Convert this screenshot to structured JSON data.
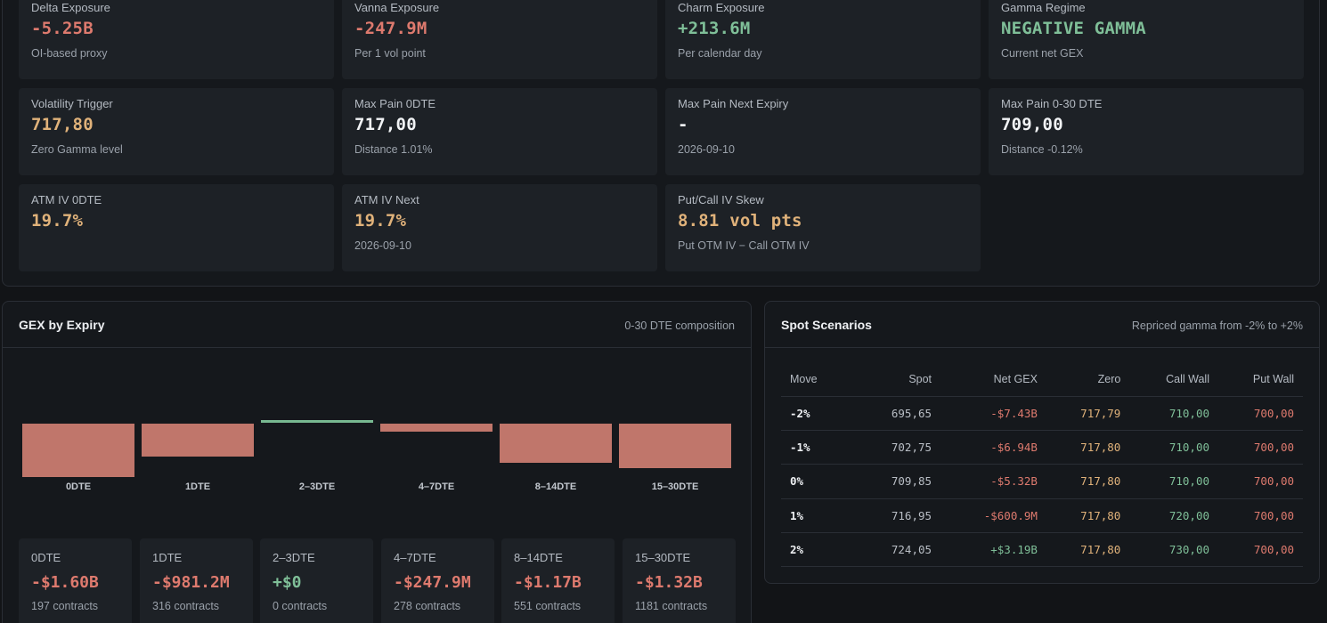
{
  "metrics": [
    {
      "label": "Delta Exposure",
      "value": "-5.25B",
      "sub": "OI-based proxy",
      "tone": "neg"
    },
    {
      "label": "Vanna Exposure",
      "value": "-247.9M",
      "sub": "Per 1 vol point",
      "tone": "neg"
    },
    {
      "label": "Charm Exposure",
      "value": "+213.6M",
      "sub": "Per calendar day",
      "tone": "pos"
    },
    {
      "label": "Gamma Regime",
      "value": "NEGATIVE GAMMA",
      "sub": "Current net GEX",
      "tone": "pos"
    },
    {
      "label": "Volatility Trigger",
      "value": "717,80",
      "sub": "Zero Gamma level",
      "tone": "amber"
    },
    {
      "label": "Max Pain 0DTE",
      "value": "717,00",
      "sub": "Distance 1.01%",
      "tone": "white"
    },
    {
      "label": "Max Pain Next Expiry",
      "value": "-",
      "sub": "2026-09-10",
      "tone": "white"
    },
    {
      "label": "Max Pain 0-30 DTE",
      "value": "709,00",
      "sub": "Distance -0.12%",
      "tone": "white"
    },
    {
      "label": "ATM IV 0DTE",
      "value": "19.7%",
      "sub": "",
      "tone": "amber"
    },
    {
      "label": "ATM IV Next",
      "value": "19.7%",
      "sub": "2026-09-10",
      "tone": "amber"
    },
    {
      "label": "Put/Call IV Skew",
      "value": "8.81 vol pts",
      "sub": "Put OTM IV − Call OTM IV",
      "tone": "amber"
    }
  ],
  "gex_panel": {
    "title": "GEX by Expiry",
    "subtitle": "0-30 DTE composition"
  },
  "chart_data": {
    "type": "bar",
    "categories": [
      "0DTE",
      "1DTE",
      "2–3DTE",
      "4–7DTE",
      "8–14DTE",
      "15–30DTE"
    ],
    "values": [
      -1.6,
      -0.9812,
      0.0,
      -0.2479,
      -1.17,
      -1.32
    ],
    "colors": {
      "negative": "#c0766b",
      "positive": "#78b891"
    }
  },
  "buckets": [
    {
      "label": "0DTE",
      "value": "-$1.60B",
      "sub": "197 contracts",
      "tone": "neg"
    },
    {
      "label": "1DTE",
      "value": "-$981.2M",
      "sub": "316 contracts",
      "tone": "neg"
    },
    {
      "label": "2–3DTE",
      "value": "+$0",
      "sub": "0 contracts",
      "tone": "pos"
    },
    {
      "label": "4–7DTE",
      "value": "-$247.9M",
      "sub": "278 contracts",
      "tone": "neg"
    },
    {
      "label": "8–14DTE",
      "value": "-$1.17B",
      "sub": "551 contracts",
      "tone": "neg"
    },
    {
      "label": "15–30DTE",
      "value": "-$1.32B",
      "sub": "1181 contracts",
      "tone": "neg"
    }
  ],
  "spot_panel": {
    "title": "Spot Scenarios",
    "subtitle": "Repriced gamma from -2% to +2%",
    "columns": [
      "Move",
      "Spot",
      "Net GEX",
      "Zero",
      "Call Wall",
      "Put Wall"
    ],
    "rows": [
      {
        "move": "-2%",
        "spot": "695,65",
        "net_gex": "-$7.43B",
        "net_tone": "neg",
        "zero": "717,79",
        "call_wall": "710,00",
        "put_wall": "700,00"
      },
      {
        "move": "-1%",
        "spot": "702,75",
        "net_gex": "-$6.94B",
        "net_tone": "neg",
        "zero": "717,80",
        "call_wall": "710,00",
        "put_wall": "700,00"
      },
      {
        "move": "0%",
        "spot": "709,85",
        "net_gex": "-$5.32B",
        "net_tone": "neg",
        "zero": "717,80",
        "call_wall": "710,00",
        "put_wall": "700,00"
      },
      {
        "move": "1%",
        "spot": "716,95",
        "net_gex": "-$600.9M",
        "net_tone": "neg",
        "zero": "717,80",
        "call_wall": "720,00",
        "put_wall": "700,00"
      },
      {
        "move": "2%",
        "spot": "724,05",
        "net_gex": "+$3.19B",
        "net_tone": "pos",
        "zero": "717,80",
        "call_wall": "730,00",
        "put_wall": "700,00"
      }
    ]
  }
}
